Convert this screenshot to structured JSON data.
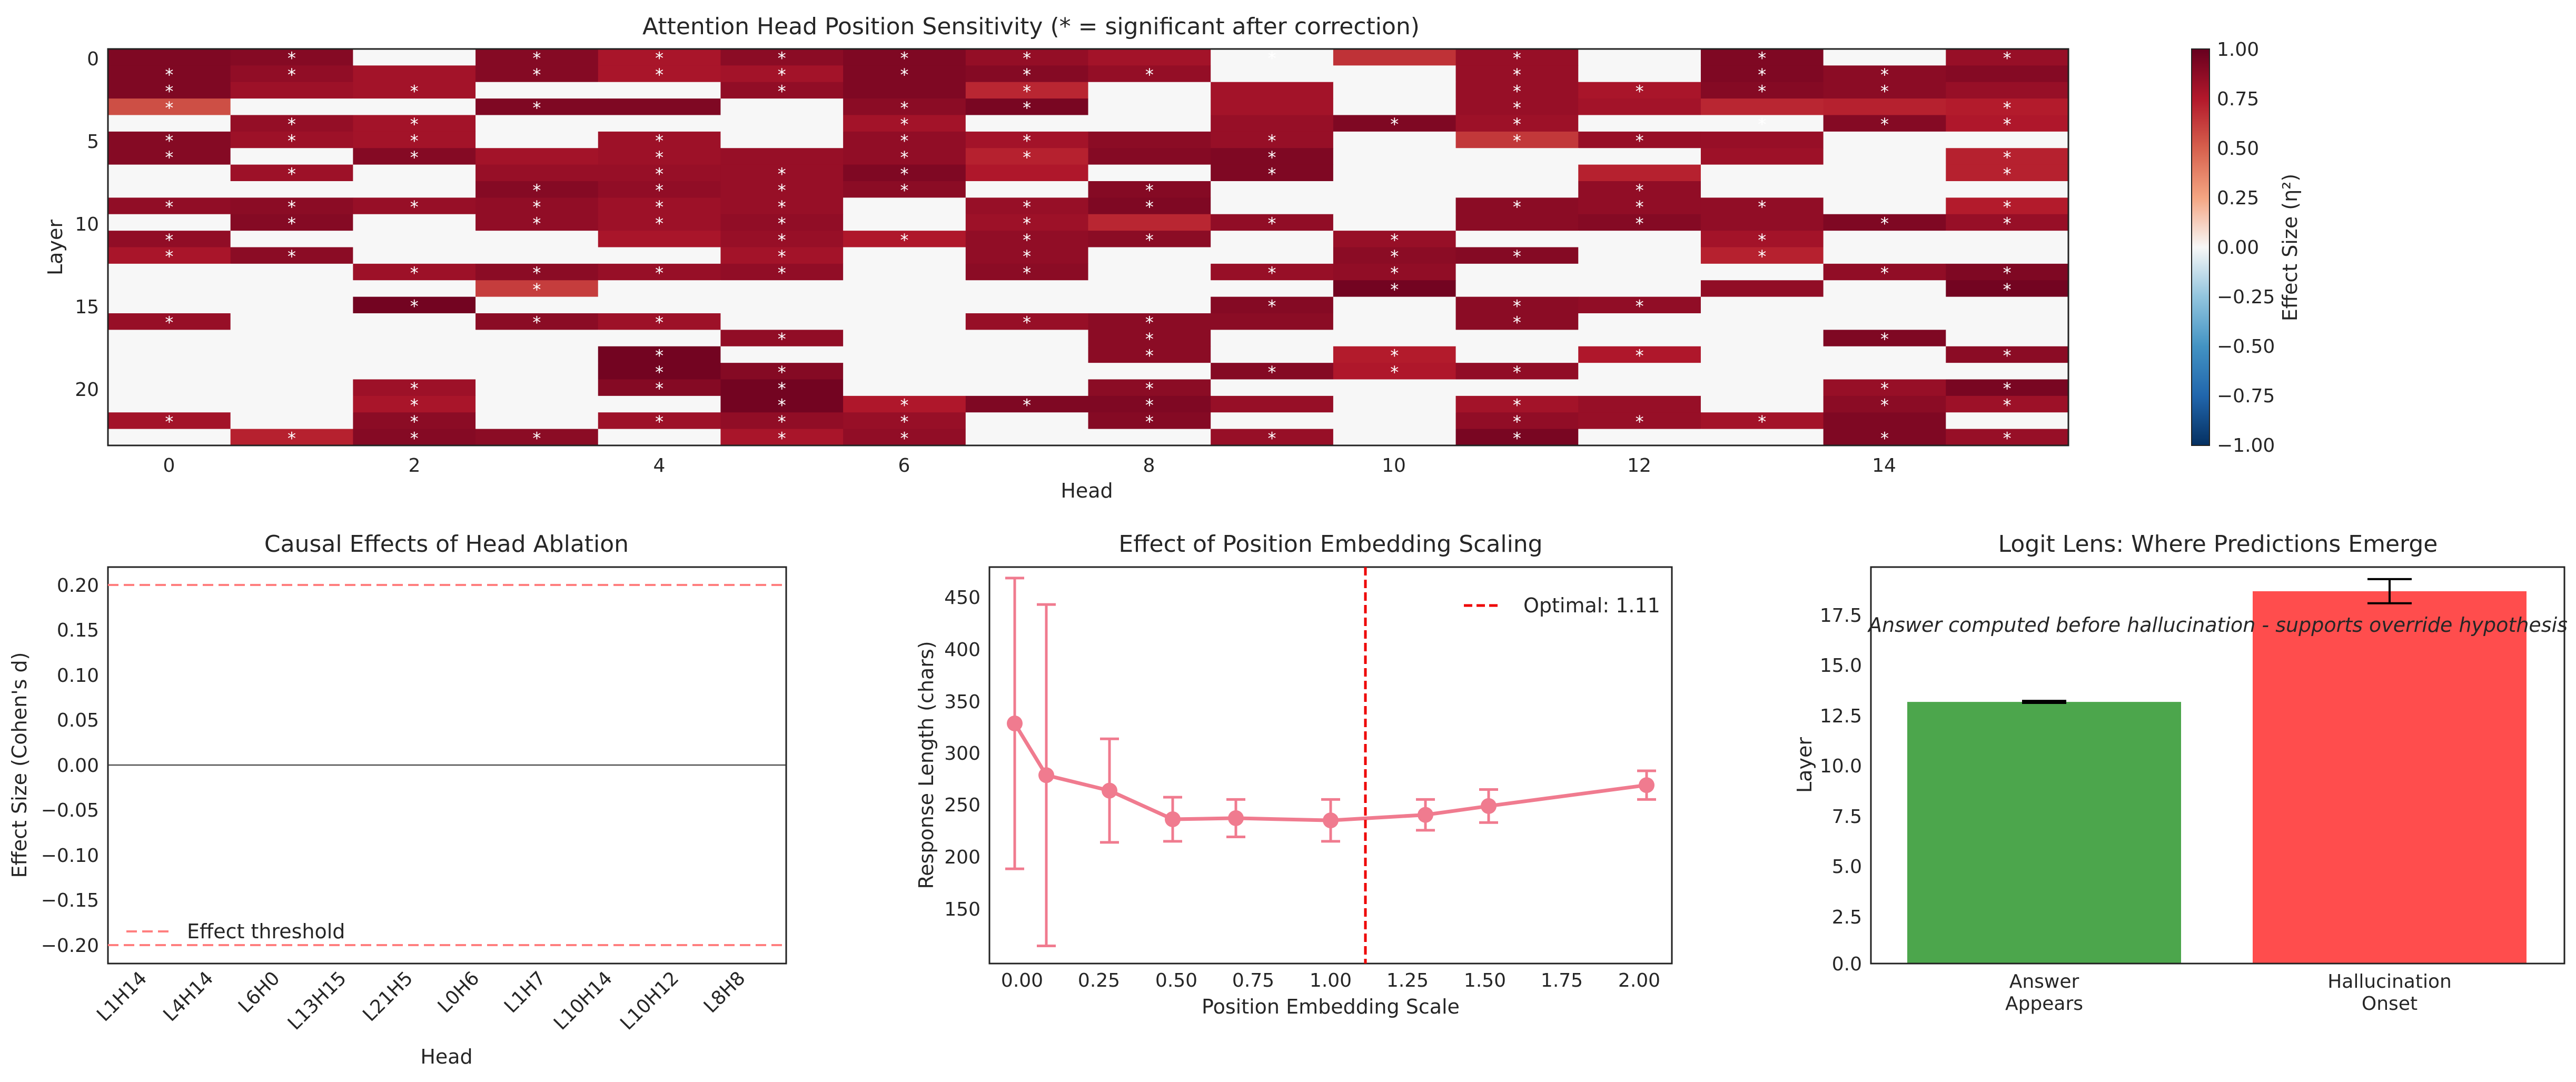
{
  "chart_data": [
    {
      "type": "heatmap",
      "title": "Attention Head Position Sensitivity (* = significant after correction)",
      "xlabel": "Head",
      "ylabel": "Layer",
      "n_heads": 16,
      "n_layers": 24,
      "x_ticks": [
        "0",
        "2",
        "4",
        "6",
        "8",
        "10",
        "12",
        "14"
      ],
      "y_ticks": [
        "0",
        "5",
        "10",
        "15",
        "20"
      ],
      "colorbar_label": "Effect Size (η²)",
      "colorbar_ticks": [
        "1.00",
        "0.75",
        "0.50",
        "0.25",
        "0.00",
        "−0.25",
        "−0.50",
        "−0.75",
        "−1.00"
      ],
      "vmin": -1,
      "vmax": 1,
      "colormap": "RdBu_r",
      "significance_marker": "*",
      "values": [
        [
          0.92,
          0.9,
          0.0,
          0.9,
          0.78,
          0.88,
          0.92,
          0.85,
          0.8,
          0.0,
          0.66,
          0.84,
          0.0,
          0.92,
          0.0,
          0.84
        ],
        [
          0.92,
          0.86,
          0.8,
          0.9,
          0.78,
          0.8,
          0.92,
          0.9,
          0.85,
          0.0,
          0.0,
          0.84,
          0.0,
          0.92,
          0.88,
          0.9
        ],
        [
          0.92,
          0.82,
          0.8,
          0.0,
          0.0,
          0.86,
          0.92,
          0.7,
          0.0,
          0.8,
          0.0,
          0.84,
          0.78,
          0.9,
          0.88,
          0.84
        ],
        [
          0.56,
          0.0,
          0.0,
          0.92,
          0.92,
          0.0,
          0.88,
          0.94,
          0.0,
          0.8,
          0.0,
          0.84,
          0.8,
          0.7,
          0.72,
          0.74
        ],
        [
          0.0,
          0.85,
          0.8,
          0.0,
          0.0,
          0.0,
          0.8,
          0.0,
          0.0,
          0.84,
          0.92,
          0.82,
          0.0,
          0.0,
          0.9,
          0.76
        ],
        [
          0.9,
          0.82,
          0.8,
          0.0,
          0.82,
          0.0,
          0.86,
          0.8,
          0.88,
          0.84,
          0.0,
          0.64,
          0.84,
          0.84,
          0.0,
          0.0
        ],
        [
          0.9,
          0.0,
          0.9,
          0.8,
          0.82,
          0.84,
          0.86,
          0.72,
          0.9,
          0.92,
          0.0,
          0.0,
          0.0,
          0.82,
          0.0,
          0.72
        ],
        [
          0.0,
          0.82,
          0.0,
          0.84,
          0.84,
          0.84,
          0.92,
          0.76,
          0.0,
          0.92,
          0.0,
          0.0,
          0.72,
          0.0,
          0.0,
          0.72
        ],
        [
          0.0,
          0.0,
          0.0,
          0.9,
          0.86,
          0.84,
          0.88,
          0.0,
          0.9,
          0.0,
          0.0,
          0.0,
          0.86,
          0.0,
          0.0,
          0.0
        ],
        [
          0.86,
          0.88,
          0.84,
          0.86,
          0.82,
          0.84,
          0.0,
          0.84,
          0.92,
          0.0,
          0.0,
          0.88,
          0.86,
          0.86,
          0.0,
          0.74
        ],
        [
          0.0,
          0.9,
          0.0,
          0.86,
          0.82,
          0.86,
          0.0,
          0.82,
          0.7,
          0.86,
          0.0,
          0.88,
          0.9,
          0.86,
          0.92,
          0.84
        ],
        [
          0.86,
          0.0,
          0.0,
          0.0,
          0.78,
          0.84,
          0.76,
          0.86,
          0.88,
          0.0,
          0.84,
          0.0,
          0.0,
          0.8,
          0.0,
          0.0
        ],
        [
          0.78,
          0.88,
          0.0,
          0.0,
          0.0,
          0.8,
          0.0,
          0.86,
          0.0,
          0.0,
          0.88,
          0.9,
          0.0,
          0.72,
          0.0,
          0.0
        ],
        [
          0.0,
          0.0,
          0.82,
          0.88,
          0.84,
          0.86,
          0.0,
          0.88,
          0.0,
          0.84,
          0.86,
          0.0,
          0.0,
          0.0,
          0.86,
          0.92
        ],
        [
          0.0,
          0.0,
          0.0,
          0.62,
          0.0,
          0.0,
          0.0,
          0.0,
          0.0,
          0.0,
          0.96,
          0.0,
          0.0,
          0.86,
          0.0,
          0.96
        ],
        [
          0.0,
          0.0,
          0.96,
          0.0,
          0.0,
          0.0,
          0.0,
          0.0,
          0.0,
          0.9,
          0.0,
          0.88,
          0.86,
          0.0,
          0.0,
          0.0
        ],
        [
          0.84,
          0.0,
          0.0,
          0.88,
          0.82,
          0.0,
          0.0,
          0.84,
          0.88,
          0.88,
          0.0,
          0.88,
          0.0,
          0.0,
          0.0,
          0.0
        ],
        [
          0.0,
          0.0,
          0.0,
          0.0,
          0.0,
          0.86,
          0.0,
          0.0,
          0.88,
          0.0,
          0.0,
          0.0,
          0.0,
          0.0,
          0.92,
          0.0
        ],
        [
          0.0,
          0.0,
          0.0,
          0.0,
          0.96,
          0.0,
          0.0,
          0.0,
          0.88,
          0.0,
          0.74,
          0.0,
          0.76,
          0.0,
          0.0,
          0.88
        ],
        [
          0.0,
          0.0,
          0.0,
          0.0,
          0.96,
          0.9,
          0.0,
          0.0,
          0.0,
          0.9,
          0.76,
          0.86,
          0.0,
          0.0,
          0.0,
          0.0
        ],
        [
          0.0,
          0.0,
          0.82,
          0.0,
          0.9,
          0.96,
          0.0,
          0.0,
          0.88,
          0.0,
          0.0,
          0.0,
          0.0,
          0.0,
          0.84,
          0.94
        ],
        [
          0.0,
          0.0,
          0.78,
          0.0,
          0.0,
          0.96,
          0.76,
          0.92,
          0.92,
          0.84,
          0.0,
          0.8,
          0.84,
          0.0,
          0.88,
          0.82
        ],
        [
          0.8,
          0.0,
          0.88,
          0.0,
          0.82,
          0.86,
          0.84,
          0.0,
          0.9,
          0.0,
          0.0,
          0.86,
          0.84,
          0.8,
          0.92,
          0.0
        ],
        [
          0.0,
          0.72,
          0.9,
          0.88,
          0.0,
          0.78,
          0.86,
          0.0,
          0.0,
          0.84,
          0.0,
          0.94,
          0.0,
          0.0,
          0.92,
          0.84
        ]
      ],
      "significant": [
        [
          0,
          1
        ],
        [
          0,
          3
        ],
        [
          0,
          4
        ],
        [
          0,
          6
        ],
        [
          0,
          7
        ],
        [
          0,
          11
        ],
        [
          0,
          13
        ],
        [
          0,
          15
        ],
        [
          0,
          5
        ],
        [
          0,
          9
        ],
        [
          1,
          0
        ],
        [
          1,
          1
        ],
        [
          1,
          3
        ],
        [
          1,
          4
        ],
        [
          1,
          5
        ],
        [
          1,
          6
        ],
        [
          1,
          7
        ],
        [
          1,
          8
        ],
        [
          1,
          11
        ],
        [
          1,
          13
        ],
        [
          1,
          14
        ],
        [
          2,
          0
        ],
        [
          2,
          2
        ],
        [
          2,
          5
        ],
        [
          2,
          7
        ],
        [
          2,
          11
        ],
        [
          2,
          12
        ],
        [
          2,
          13
        ],
        [
          2,
          14
        ],
        [
          3,
          0
        ],
        [
          3,
          3
        ],
        [
          3,
          6
        ],
        [
          3,
          7
        ],
        [
          3,
          11
        ],
        [
          3,
          15
        ],
        [
          4,
          1
        ],
        [
          4,
          2
        ],
        [
          4,
          6
        ],
        [
          4,
          10
        ],
        [
          4,
          11
        ],
        [
          4,
          13
        ],
        [
          4,
          14
        ],
        [
          4,
          15
        ],
        [
          5,
          0
        ],
        [
          5,
          1
        ],
        [
          5,
          2
        ],
        [
          5,
          4
        ],
        [
          5,
          6
        ],
        [
          5,
          7
        ],
        [
          5,
          9
        ],
        [
          5,
          11
        ],
        [
          5,
          12
        ],
        [
          6,
          0
        ],
        [
          6,
          2
        ],
        [
          6,
          4
        ],
        [
          6,
          6
        ],
        [
          6,
          7
        ],
        [
          6,
          9
        ],
        [
          6,
          15
        ],
        [
          7,
          1
        ],
        [
          7,
          4
        ],
        [
          7,
          5
        ],
        [
          7,
          6
        ],
        [
          7,
          9
        ],
        [
          7,
          15
        ],
        [
          8,
          3
        ],
        [
          8,
          4
        ],
        [
          8,
          5
        ],
        [
          8,
          6
        ],
        [
          8,
          8
        ],
        [
          8,
          12
        ],
        [
          9,
          0
        ],
        [
          9,
          1
        ],
        [
          9,
          2
        ],
        [
          9,
          3
        ],
        [
          9,
          4
        ],
        [
          9,
          5
        ],
        [
          9,
          7
        ],
        [
          9,
          8
        ],
        [
          9,
          11
        ],
        [
          9,
          12
        ],
        [
          9,
          13
        ],
        [
          9,
          15
        ],
        [
          10,
          1
        ],
        [
          10,
          3
        ],
        [
          10,
          4
        ],
        [
          10,
          5
        ],
        [
          10,
          7
        ],
        [
          10,
          9
        ],
        [
          10,
          12
        ],
        [
          10,
          14
        ],
        [
          10,
          15
        ],
        [
          11,
          0
        ],
        [
          11,
          5
        ],
        [
          11,
          6
        ],
        [
          11,
          7
        ],
        [
          11,
          8
        ],
        [
          11,
          10
        ],
        [
          11,
          13
        ],
        [
          12,
          0
        ],
        [
          12,
          1
        ],
        [
          12,
          5
        ],
        [
          12,
          7
        ],
        [
          12,
          10
        ],
        [
          12,
          11
        ],
        [
          12,
          13
        ],
        [
          13,
          2
        ],
        [
          13,
          3
        ],
        [
          13,
          4
        ],
        [
          13,
          5
        ],
        [
          13,
          7
        ],
        [
          13,
          9
        ],
        [
          13,
          10
        ],
        [
          13,
          14
        ],
        [
          13,
          15
        ],
        [
          14,
          3
        ],
        [
          14,
          10
        ],
        [
          14,
          15
        ],
        [
          15,
          2
        ],
        [
          15,
          9
        ],
        [
          15,
          11
        ],
        [
          15,
          12
        ],
        [
          16,
          0
        ],
        [
          16,
          3
        ],
        [
          16,
          4
        ],
        [
          16,
          7
        ],
        [
          16,
          8
        ],
        [
          16,
          11
        ],
        [
          17,
          5
        ],
        [
          17,
          8
        ],
        [
          17,
          14
        ],
        [
          18,
          4
        ],
        [
          18,
          8
        ],
        [
          18,
          10
        ],
        [
          18,
          12
        ],
        [
          18,
          15
        ],
        [
          19,
          4
        ],
        [
          19,
          5
        ],
        [
          19,
          9
        ],
        [
          19,
          10
        ],
        [
          19,
          11
        ],
        [
          20,
          2
        ],
        [
          20,
          4
        ],
        [
          20,
          5
        ],
        [
          20,
          8
        ],
        [
          20,
          14
        ],
        [
          20,
          15
        ],
        [
          21,
          2
        ],
        [
          21,
          5
        ],
        [
          21,
          6
        ],
        [
          21,
          7
        ],
        [
          21,
          8
        ],
        [
          21,
          11
        ],
        [
          21,
          14
        ],
        [
          21,
          15
        ],
        [
          22,
          0
        ],
        [
          22,
          2
        ],
        [
          22,
          4
        ],
        [
          22,
          5
        ],
        [
          22,
          6
        ],
        [
          22,
          8
        ],
        [
          22,
          11
        ],
        [
          22,
          12
        ],
        [
          22,
          13
        ],
        [
          23,
          1
        ],
        [
          23,
          2
        ],
        [
          23,
          3
        ],
        [
          23,
          5
        ],
        [
          23,
          6
        ],
        [
          23,
          9
        ],
        [
          23,
          11
        ],
        [
          23,
          14
        ],
        [
          23,
          15
        ]
      ]
    },
    {
      "type": "line",
      "title": "Causal Effects of Head Ablation",
      "xlabel": "Head",
      "ylabel": "Effect Size (Cohen's d)",
      "categories": [
        "L1H14",
        "L4H14",
        "L6H0",
        "L13H15",
        "L21H5",
        "L0H6",
        "L1H7",
        "L10H14",
        "L10H12",
        "L8H8"
      ],
      "y_ticks": [
        "0.20",
        "0.15",
        "0.10",
        "0.05",
        "0.00",
        "−0.05",
        "−0.10",
        "−0.15",
        "−0.20"
      ],
      "ylim": [
        -0.22,
        0.22
      ],
      "zero_line": 0,
      "thresholds": [
        0.2,
        -0.2
      ],
      "threshold_color": "#ff7f7f",
      "legend": [
        "Effect threshold"
      ],
      "legend_position": "lower-left"
    },
    {
      "type": "line",
      "title": "Effect of Position Embedding Scaling",
      "xlabel": "Position Embedding Scale",
      "ylabel": "Response Length (chars)",
      "x_ticks": [
        "0.00",
        "0.25",
        "0.50",
        "0.75",
        "1.00",
        "1.25",
        "1.50",
        "1.75",
        "2.00"
      ],
      "y_ticks": [
        "450",
        "400",
        "350",
        "300",
        "250",
        "200",
        "150"
      ],
      "xlim": [
        -0.08,
        2.08
      ],
      "ylim": [
        110,
        470
      ],
      "series_color": "#f07b8f",
      "x": [
        0.0,
        0.1,
        0.3,
        0.5,
        0.7,
        1.0,
        1.3,
        1.5,
        2.0
      ],
      "y": [
        328,
        281,
        267,
        241,
        242,
        240,
        245,
        253,
        272
      ],
      "error": [
        132,
        155,
        47,
        20,
        17,
        19,
        14,
        15,
        13
      ],
      "optimal_line": 1.11,
      "optimal_color": "#ee0000",
      "legend": [
        "Optimal: 1.11"
      ],
      "legend_position": "top-right"
    },
    {
      "type": "bar",
      "title": "Logit Lens: Where Predictions Emerge",
      "ylabel": "Layer",
      "categories": [
        "Answer\nAppears",
        "Hallucination\nOnset"
      ],
      "values": [
        13.0,
        18.5
      ],
      "errors": [
        0.05,
        0.6
      ],
      "colors": [
        "#4ca64c",
        "#ff4d4d"
      ],
      "y_ticks": [
        "17.5",
        "15.0",
        "12.5",
        "10.0",
        "7.5",
        "5.0",
        "2.5",
        "0.0"
      ],
      "ylim": [
        0,
        19.7
      ],
      "annotation": "Answer computed before hallucination - supports override hypothesis"
    }
  ]
}
